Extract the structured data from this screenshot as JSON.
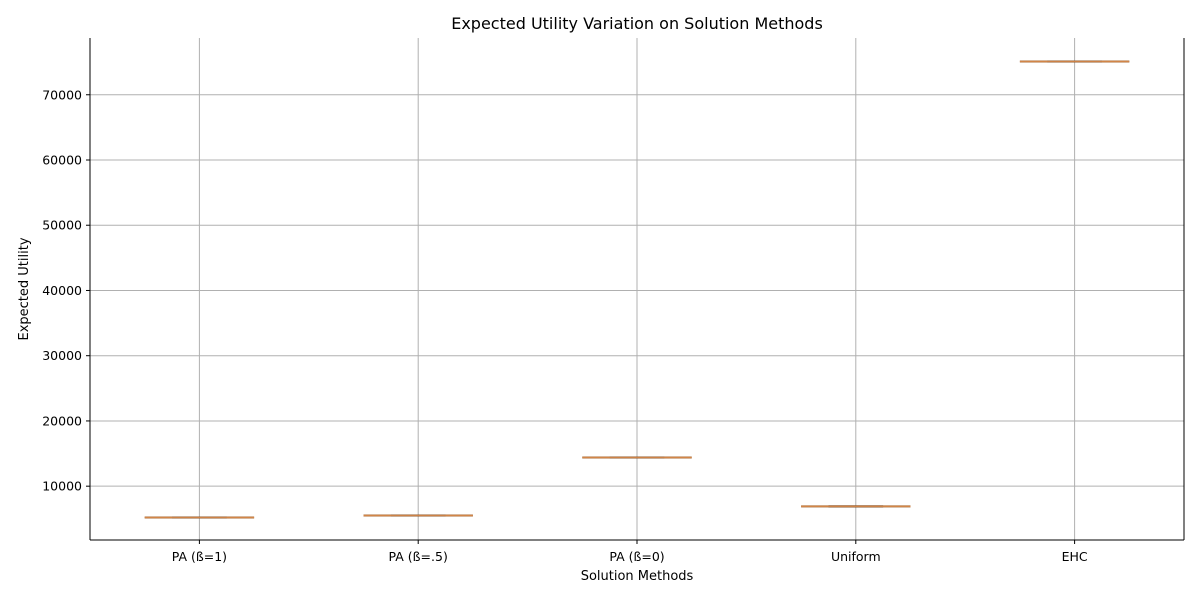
{
  "chart_data": {
    "type": "box",
    "title": "Expected Utility Variation on Solution Methods",
    "xlabel": "Solution Methods",
    "ylabel": "Expected Utility",
    "categories": [
      "PA (ß=1)",
      "PA (ß=.5)",
      "PA (ß=0)",
      "Uniform",
      "EHC"
    ],
    "values": [
      5200,
      5500,
      14400,
      6900,
      75100
    ],
    "y_ticks": [
      10000,
      20000,
      30000,
      40000,
      50000,
      60000,
      70000
    ],
    "ylim": [
      1750,
      78700
    ],
    "grid": true,
    "box_color": "#8c5a2b",
    "median_color": "#d98a4a",
    "grid_color": "#b0b0b0"
  }
}
